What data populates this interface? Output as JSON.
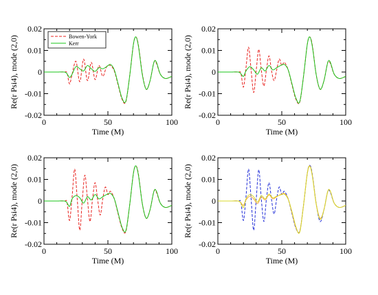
{
  "colors": {
    "bowen_york": "#e8231f",
    "kerr": "#19c419",
    "blue": "#2330d8",
    "orange": "#f2a640",
    "yellow": "#d8d828"
  },
  "chart_data": [
    {
      "type": "line",
      "panel": "top-left",
      "xlabel": "Time (M)",
      "ylabel": "Re(r Psi4), mode (2,0)",
      "xlim": [
        0,
        100
      ],
      "ylim": [
        -0.02,
        0.02
      ],
      "xticks": [
        0,
        50,
        100
      ],
      "yticks": [
        -0.02,
        -0.01,
        0,
        0.01,
        0.02
      ],
      "ytick_labels": [
        "-0.02",
        "-0.01",
        "0",
        "0.01",
        "0.02"
      ],
      "grid": false,
      "legend": {
        "position": "top-left",
        "entries": [
          "Bowen-York",
          "Kerr"
        ]
      },
      "series": [
        {
          "name": "Bowen-York",
          "color": "#e8231f",
          "dash": "4,2",
          "x": [
            0,
            10,
            16,
            18,
            20,
            22,
            25,
            28,
            31,
            34,
            37,
            40,
            43,
            46,
            49,
            52,
            55,
            58,
            61,
            64,
            67,
            70,
            72,
            74,
            77,
            80,
            83,
            86,
            88,
            91,
            95,
            100
          ],
          "y": [
            0,
            0,
            0,
            -0.0003,
            -0.0055,
            -0.001,
            0.005,
            -0.0045,
            0.006,
            -0.004,
            0.0045,
            -0.0035,
            0.003,
            -0.002,
            0.0025,
            0.003,
            0.0005,
            -0.006,
            -0.0125,
            -0.0138,
            -0.002,
            0.013,
            0.0162,
            0.012,
            -0.001,
            -0.008,
            -0.004,
            0.0045,
            0.004,
            -0.001,
            -0.003,
            -0.002
          ]
        },
        {
          "name": "Kerr",
          "color": "#19c419",
          "dash": "",
          "x": [
            0,
            10,
            16,
            18,
            20,
            22,
            25,
            28,
            31,
            34,
            37,
            40,
            43,
            46,
            49,
            52,
            55,
            58,
            61,
            64,
            67,
            70,
            72,
            74,
            77,
            80,
            83,
            86,
            88,
            91,
            95,
            100
          ],
          "y": [
            0,
            0,
            0,
            -0.0008,
            -0.0025,
            -0.001,
            0.0025,
            0.0015,
            0.0005,
            0.003,
            0.0015,
            0.0003,
            0.002,
            0.0015,
            0.0025,
            0.0035,
            0.001,
            -0.0055,
            -0.012,
            -0.0135,
            -0.002,
            0.013,
            0.0162,
            0.0115,
            -0.0015,
            -0.008,
            -0.004,
            0.0045,
            0.0045,
            -0.001,
            -0.003,
            -0.002
          ]
        }
      ]
    },
    {
      "type": "line",
      "panel": "top-right",
      "xlabel": "Time (M)",
      "ylabel": "Re(r Psi4), mode (2,0)",
      "xlim": [
        0,
        100
      ],
      "ylim": [
        -0.02,
        0.02
      ],
      "xticks": [
        0,
        50,
        100
      ],
      "yticks": [
        -0.02,
        -0.01,
        0,
        0.01,
        0.02
      ],
      "ytick_labels": [
        "-0.02",
        "-0.01",
        "0",
        "0.01",
        "0.02"
      ],
      "grid": false,
      "series": [
        {
          "name": "",
          "color": "#e8231f",
          "dash": "4,2",
          "x": [
            0,
            10,
            16,
            18,
            20,
            22,
            24,
            26,
            28,
            30,
            32,
            34,
            36,
            38,
            40,
            42,
            44,
            46,
            48,
            50,
            52,
            55,
            58,
            61,
            64,
            67,
            70,
            72,
            74,
            77,
            80,
            83,
            86,
            88,
            91,
            95,
            100
          ],
          "y": [
            0,
            0,
            0,
            -0.0005,
            -0.007,
            0.002,
            0.0115,
            0.001,
            -0.0095,
            0.0008,
            0.0105,
            0.0008,
            -0.0065,
            0.001,
            0.0075,
            0.0005,
            -0.004,
            0.001,
            0.006,
            0.003,
            0.0045,
            0.001,
            -0.006,
            -0.0125,
            -0.014,
            -0.002,
            0.013,
            0.0162,
            0.012,
            -0.0015,
            -0.008,
            -0.004,
            0.0045,
            0.004,
            -0.001,
            -0.003,
            -0.002
          ]
        },
        {
          "name": "",
          "color": "#19c419",
          "dash": "",
          "x": [
            0,
            10,
            16,
            18,
            20,
            22,
            25,
            28,
            31,
            34,
            37,
            40,
            43,
            46,
            49,
            52,
            55,
            58,
            61,
            64,
            67,
            70,
            72,
            74,
            77,
            80,
            83,
            86,
            88,
            91,
            95,
            100
          ],
          "y": [
            0,
            0,
            0,
            -0.0008,
            -0.002,
            0.0005,
            0.0025,
            0.001,
            -0.001,
            0.002,
            0.0005,
            0.003,
            0.001,
            0.002,
            0.003,
            0.0035,
            0.001,
            -0.0055,
            -0.012,
            -0.0138,
            -0.002,
            0.013,
            0.0162,
            0.0115,
            -0.0015,
            -0.008,
            -0.004,
            0.0045,
            0.0045,
            -0.001,
            -0.003,
            -0.002
          ]
        }
      ]
    },
    {
      "type": "line",
      "panel": "bottom-left",
      "xlabel": "Time (M)",
      "ylabel": "Re(r Psi4), mode (2,0)",
      "xlim": [
        0,
        100
      ],
      "ylim": [
        -0.02,
        0.02
      ],
      "xticks": [
        0,
        50,
        100
      ],
      "yticks": [
        -0.02,
        -0.01,
        0,
        0.01,
        0.02
      ],
      "ytick_labels": [
        "-0.02",
        "-0.01",
        "0",
        "0.01",
        "0.02"
      ],
      "grid": false,
      "series": [
        {
          "name": "",
          "color": "#e8231f",
          "dash": "4,2",
          "x": [
            0,
            10,
            16,
            18,
            20,
            22,
            24,
            26,
            28,
            30,
            32,
            34,
            36,
            38,
            40,
            42,
            44,
            46,
            48,
            50,
            52,
            55,
            58,
            61,
            64,
            67,
            70,
            72,
            74,
            77,
            80,
            83,
            86,
            88,
            91,
            95,
            100
          ],
          "y": [
            0,
            0,
            0,
            -0.0005,
            -0.009,
            0.002,
            0.0148,
            0.001,
            -0.0135,
            0.0008,
            0.012,
            0.0008,
            -0.0095,
            0.001,
            0.0085,
            0.0005,
            -0.0065,
            0.001,
            0.0065,
            0.003,
            0.0045,
            0.001,
            -0.006,
            -0.0125,
            -0.0142,
            -0.002,
            0.013,
            0.0162,
            0.012,
            -0.0015,
            -0.008,
            -0.004,
            0.0045,
            0.004,
            -0.001,
            -0.003,
            -0.002
          ]
        },
        {
          "name": "",
          "color": "#19c419",
          "dash": "",
          "x": [
            0,
            10,
            16,
            18,
            20,
            22,
            25,
            28,
            31,
            34,
            37,
            40,
            43,
            46,
            49,
            52,
            55,
            58,
            61,
            64,
            67,
            70,
            72,
            74,
            77,
            80,
            83,
            86,
            88,
            91,
            95,
            100
          ],
          "y": [
            0,
            0,
            0,
            -0.0008,
            -0.0025,
            0.001,
            0.0025,
            0.0015,
            -0.001,
            0.002,
            0.0005,
            0.003,
            0.001,
            0.002,
            0.003,
            0.0035,
            0.001,
            -0.0055,
            -0.012,
            -0.0138,
            -0.002,
            0.013,
            0.0162,
            0.0115,
            -0.0015,
            -0.008,
            -0.004,
            0.0045,
            0.0045,
            -0.001,
            -0.003,
            -0.002
          ]
        }
      ]
    },
    {
      "type": "line",
      "panel": "bottom-right",
      "xlabel": "Time (M)",
      "ylabel": "Re(r Psi4), mode (2,0)",
      "xlim": [
        0,
        100
      ],
      "ylim": [
        -0.02,
        0.02
      ],
      "xticks": [
        0,
        50,
        100
      ],
      "yticks": [
        -0.02,
        -0.01,
        0,
        0.01,
        0.02
      ],
      "ytick_labels": [
        "-0.02",
        "-0.01",
        "0",
        "0.01",
        "0.02"
      ],
      "grid": false,
      "series": [
        {
          "name": "",
          "color": "#2330d8",
          "dash": "4,2",
          "x": [
            0,
            10,
            16,
            18,
            20,
            22,
            24,
            26,
            28,
            30,
            32,
            34,
            36,
            38,
            40,
            42,
            44,
            46,
            48,
            50,
            52,
            55,
            58,
            61,
            64,
            67,
            70,
            72,
            74,
            77,
            80,
            83,
            86,
            88,
            91,
            95,
            100
          ],
          "y": [
            0,
            0,
            0,
            -0.0005,
            -0.009,
            0.002,
            0.0148,
            0.001,
            -0.0135,
            0.0008,
            0.0145,
            0.0008,
            -0.0095,
            0.001,
            0.0085,
            0.0005,
            -0.006,
            0.001,
            0.0065,
            0.003,
            0.0045,
            0.001,
            -0.006,
            -0.0125,
            -0.014,
            -0.002,
            0.013,
            0.0165,
            0.012,
            -0.0015,
            -0.0095,
            -0.004,
            0.0045,
            0.004,
            -0.001,
            -0.003,
            -0.002
          ]
        },
        {
          "name": "",
          "color": "#f2a640",
          "dash": "",
          "x": [
            0,
            10,
            16,
            18,
            20,
            22,
            25,
            28,
            31,
            34,
            37,
            40,
            43,
            46,
            49,
            52,
            55,
            58,
            61,
            64,
            67,
            70,
            72,
            74,
            77,
            80,
            83,
            86,
            88,
            91,
            95,
            100
          ],
          "y": [
            0,
            0,
            0,
            -0.0008,
            -0.002,
            0.0005,
            0.0022,
            0.001,
            -0.0012,
            0.0018,
            0.0005,
            0.0028,
            0.001,
            0.002,
            0.003,
            0.0035,
            0.001,
            -0.0055,
            -0.0122,
            -0.0142,
            -0.002,
            0.013,
            0.0162,
            0.0115,
            -0.0015,
            -0.008,
            -0.004,
            0.0045,
            0.0045,
            -0.001,
            -0.003,
            -0.002
          ]
        },
        {
          "name": "",
          "color": "#d8d828",
          "dash": "",
          "x": [
            0,
            10,
            16,
            18,
            20,
            22,
            25,
            28,
            31,
            34,
            37,
            40,
            43,
            46,
            49,
            52,
            55,
            58,
            61,
            64,
            67,
            70,
            72,
            74,
            77,
            80,
            83,
            86,
            88,
            91,
            95,
            100
          ],
          "y": [
            0,
            0,
            0,
            -0.001,
            -0.003,
            0.001,
            0.003,
            0.002,
            -0.0005,
            0.0025,
            0.001,
            0.0032,
            0.0015,
            0.0022,
            0.0028,
            0.0032,
            0.0008,
            -0.005,
            -0.0118,
            -0.0145,
            -0.002,
            0.0128,
            0.016,
            0.0112,
            -0.0018,
            -0.0085,
            -0.004,
            0.0045,
            0.0045,
            -0.001,
            -0.003,
            -0.002
          ]
        }
      ]
    }
  ]
}
